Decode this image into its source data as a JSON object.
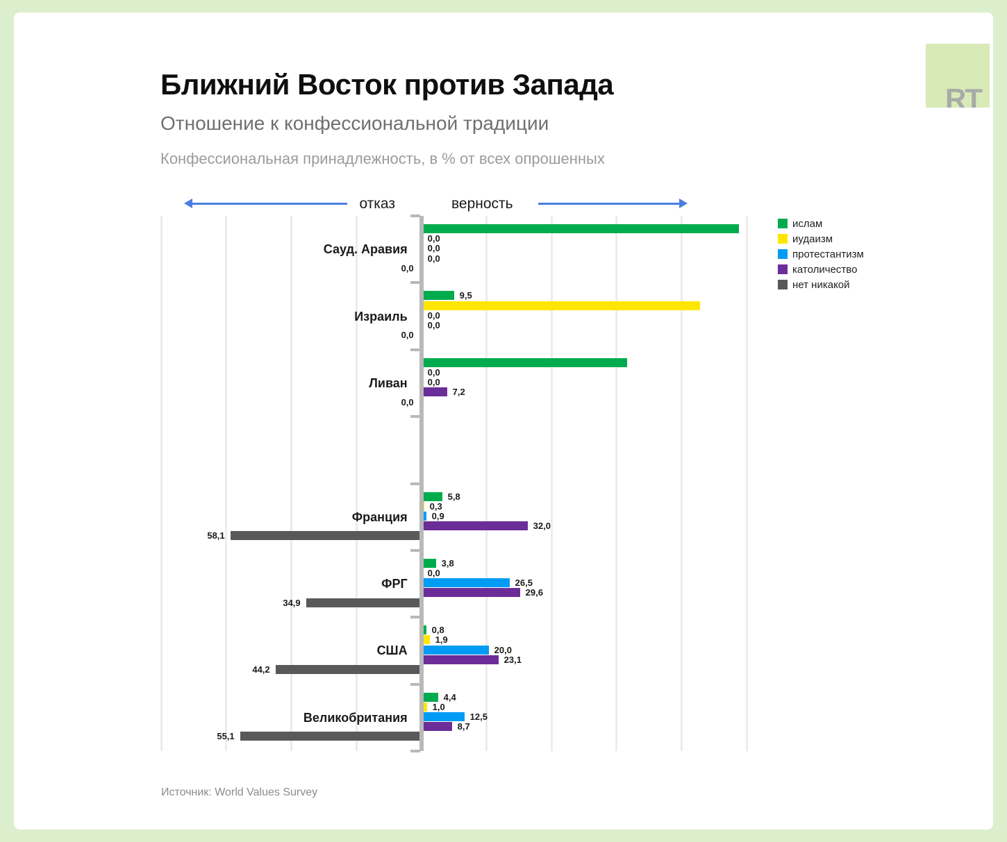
{
  "page": {
    "background_color": "#dcefcd",
    "card_color": "#ffffff"
  },
  "header": {
    "title": "Ближний Восток против Запада",
    "subtitle": "Отношение к конфессиональной традиции",
    "caption": "Конфессиональная принадлежность, в % от всех опрошенных",
    "logo_text": "RT"
  },
  "source": "Источник: World Values Survey",
  "chart_data": {
    "type": "bar",
    "orientation": "horizontal",
    "diverging": true,
    "title": "Ближний Восток против Запада",
    "subtitle": "Отношение к конфессиональной традиции",
    "unit_note": "Конфессиональная принадлежность, в % от всех опрошенных",
    "direction_labels": {
      "left": "отказ",
      "right": "верность"
    },
    "xlim": [
      -80,
      100
    ],
    "gridline_step": 20,
    "grid": true,
    "legend_position": "top-right",
    "series": [
      {
        "name": "ислам",
        "color": "#00ab4e",
        "direction": "right"
      },
      {
        "name": "иудаизм",
        "color": "#ffe600",
        "direction": "right"
      },
      {
        "name": "протестантизм",
        "color": "#009bf5",
        "direction": "right"
      },
      {
        "name": "католичество",
        "color": "#6b2d98",
        "direction": "right"
      },
      {
        "name": "нет никакой",
        "color": "#595959",
        "direction": "left"
      }
    ],
    "categories": [
      {
        "name": "Сауд. Аравия",
        "values": [
          97.0,
          0.0,
          0.0,
          0.0,
          0.0
        ],
        "labels": [
          null,
          "0,0",
          "0,0",
          "0,0",
          "0,0"
        ]
      },
      {
        "name": "Израиль",
        "values": [
          9.5,
          85.0,
          0.0,
          0.0,
          0.0
        ],
        "labels": [
          "9,5",
          null,
          "0,0",
          "0,0",
          "0,0"
        ]
      },
      {
        "name": "Ливан",
        "values": [
          62.6,
          0.0,
          0.0,
          7.2,
          0.0
        ],
        "labels": [
          null,
          "0,0",
          "0,0",
          "7,2",
          "0,0"
        ]
      },
      {
        "name": "",
        "spacer": true,
        "values": [],
        "labels": []
      },
      {
        "name": "Франция",
        "values": [
          5.8,
          0.3,
          0.9,
          32.0,
          58.1
        ],
        "labels": [
          "5,8",
          "0,3",
          "0,9",
          "32,0",
          "58,1"
        ]
      },
      {
        "name": "ФРГ",
        "values": [
          3.8,
          0.0,
          26.5,
          29.6,
          34.9
        ],
        "labels": [
          "3,8",
          "0,0",
          "26,5",
          "29,6",
          "34,9"
        ]
      },
      {
        "name": "США",
        "values": [
          0.8,
          1.9,
          20.0,
          23.1,
          44.2
        ],
        "labels": [
          "0,8",
          "1,9",
          "20,0",
          "23,1",
          "44,2"
        ]
      },
      {
        "name": "Великобритания",
        "values": [
          4.4,
          1.0,
          12.5,
          8.7,
          55.1
        ],
        "labels": [
          "4,4",
          "1,0",
          "12,5",
          "8,7",
          "55,1"
        ]
      }
    ],
    "unlabeled_bar_values_estimated": true
  },
  "colors": {
    "arrow_blue": "#4a7fe1",
    "axis_gray": "#b9b9b9",
    "gridline": "#ececec"
  }
}
